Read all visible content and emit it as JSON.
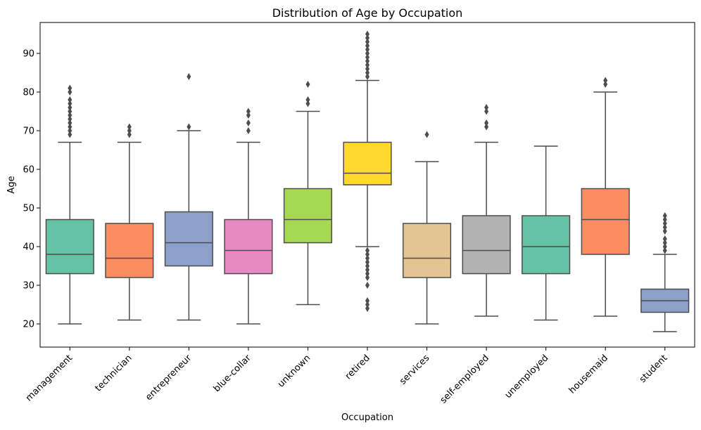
{
  "chart_data": {
    "type": "box",
    "title": "Distribution of Age by Occupation",
    "xlabel": "Occupation",
    "ylabel": "Age",
    "ylim": [
      14,
      98
    ],
    "yticks": [
      20,
      30,
      40,
      50,
      60,
      70,
      80,
      90
    ],
    "grid": false,
    "categories": [
      {
        "label": "management",
        "color": "#66c2a5",
        "whisker_low": 20,
        "q1": 33,
        "median": 38,
        "q3": 47,
        "whisker_high": 67,
        "outliers": [
          69,
          70,
          71,
          72,
          73,
          74,
          75,
          76,
          77,
          78,
          80,
          81
        ]
      },
      {
        "label": "technician",
        "color": "#fc8d62",
        "whisker_low": 21,
        "q1": 32,
        "median": 37,
        "q3": 46,
        "whisker_high": 67,
        "outliers": [
          69,
          70,
          71
        ]
      },
      {
        "label": "entrepreneur",
        "color": "#8da0cb",
        "whisker_low": 21,
        "q1": 35,
        "median": 41,
        "q3": 49,
        "whisker_high": 70,
        "outliers": [
          71,
          84
        ]
      },
      {
        "label": "blue-collar",
        "color": "#e78ac3",
        "whisker_low": 20,
        "q1": 33,
        "median": 39,
        "q3": 47,
        "whisker_high": 67,
        "outliers": [
          70,
          72,
          74,
          75
        ]
      },
      {
        "label": "unknown",
        "color": "#a6d854",
        "whisker_low": 25,
        "q1": 41,
        "median": 47,
        "q3": 55,
        "whisker_high": 75,
        "outliers": [
          77,
          78,
          82
        ]
      },
      {
        "label": "retired",
        "color": "#ffd92f",
        "whisker_low": 40,
        "q1": 56,
        "median": 59,
        "q3": 67,
        "whisker_high": 83,
        "outliers": [
          24,
          25,
          26,
          30,
          32,
          33,
          34,
          35,
          36,
          37,
          38,
          39,
          84,
          85,
          86,
          87,
          88,
          89,
          90,
          91,
          92,
          93,
          94,
          95
        ]
      },
      {
        "label": "services",
        "color": "#e5c494",
        "whisker_low": 20,
        "q1": 32,
        "median": 37,
        "q3": 46,
        "whisker_high": 62,
        "outliers": [
          69
        ]
      },
      {
        "label": "self-employed",
        "color": "#b3b3b3",
        "whisker_low": 22,
        "q1": 33,
        "median": 39,
        "q3": 48,
        "whisker_high": 67,
        "outliers": [
          71,
          72,
          75,
          76
        ]
      },
      {
        "label": "unemployed",
        "color": "#66c2a5",
        "whisker_low": 21,
        "q1": 33,
        "median": 40,
        "q3": 48,
        "whisker_high": 66,
        "outliers": []
      },
      {
        "label": "housemaid",
        "color": "#fc8d62",
        "whisker_low": 22,
        "q1": 38,
        "median": 47,
        "q3": 55,
        "whisker_high": 80,
        "outliers": [
          82,
          83
        ]
      },
      {
        "label": "student",
        "color": "#8da0cb",
        "whisker_low": 18,
        "q1": 23,
        "median": 26,
        "q3": 29,
        "whisker_high": 38,
        "outliers": [
          39,
          40,
          41,
          42,
          44,
          45,
          46,
          47,
          48
        ]
      }
    ]
  }
}
